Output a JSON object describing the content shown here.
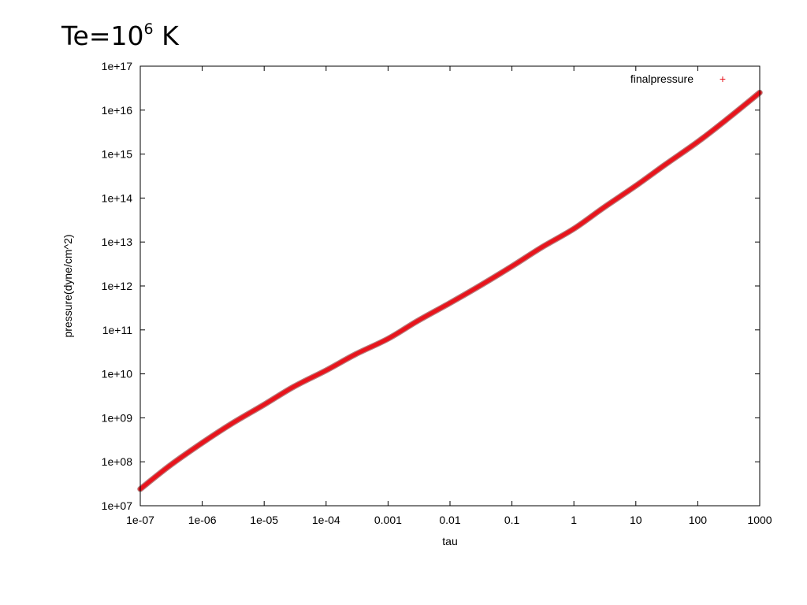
{
  "slide": {
    "title_base": "Te=10",
    "title_exponent": "6",
    "title_unit": " K"
  },
  "chart_data": {
    "type": "line",
    "xlabel": "tau",
    "ylabel": "pressure(dyne/cm^2)",
    "x_scale": "log",
    "y_scale": "log",
    "xlim": [
      1e-07,
      1000
    ],
    "ylim": [
      10000000.0,
      1e+17
    ],
    "x_ticks": [
      {
        "value": 1e-07,
        "label": "1e-07"
      },
      {
        "value": 1e-06,
        "label": "1e-06"
      },
      {
        "value": 1e-05,
        "label": "1e-05"
      },
      {
        "value": 0.0001,
        "label": "1e-04"
      },
      {
        "value": 0.001,
        "label": "0.001"
      },
      {
        "value": 0.01,
        "label": "0.01"
      },
      {
        "value": 0.1,
        "label": "0.1"
      },
      {
        "value": 1,
        "label": "1"
      },
      {
        "value": 10,
        "label": "10"
      },
      {
        "value": 100,
        "label": "100"
      },
      {
        "value": 1000,
        "label": "1000"
      }
    ],
    "y_ticks": [
      {
        "value": 10000000.0,
        "label": "1e+07"
      },
      {
        "value": 100000000.0,
        "label": "1e+08"
      },
      {
        "value": 1000000000.0,
        "label": "1e+09"
      },
      {
        "value": 10000000000.0,
        "label": "1e+10"
      },
      {
        "value": 100000000000.0,
        "label": "1e+11"
      },
      {
        "value": 1000000000000.0,
        "label": "1e+12"
      },
      {
        "value": 10000000000000.0,
        "label": "1e+13"
      },
      {
        "value": 100000000000000.0,
        "label": "1e+14"
      },
      {
        "value": 1000000000000000.0,
        "label": "1e+15"
      },
      {
        "value": 1e+16,
        "label": "1e+16"
      },
      {
        "value": 1e+17,
        "label": "1e+17"
      }
    ],
    "grid": false,
    "legend": {
      "position": "top-right",
      "marker": "+"
    },
    "series": [
      {
        "name": "finalpressure",
        "color": "#e8141c",
        "x": [
          1e-07,
          3e-07,
          1e-06,
          3e-06,
          1e-05,
          3e-05,
          0.0001,
          0.0003,
          0.001,
          0.003,
          0.01,
          0.03,
          0.1,
          0.3,
          1,
          3,
          10,
          30,
          100,
          300,
          1000
        ],
        "y": [
          24000000.0,
          82000000.0,
          270000000.0,
          740000000.0,
          2000000000.0,
          5100000000.0,
          12000000000.0,
          28000000000.0,
          63000000000.0,
          160000000000.0,
          410000000000.0,
          1000000000000.0,
          2800000000000.0,
          7500000000000.0,
          20000000000000.0,
          60000000000000.0,
          190000000000000.0,
          580000000000000.0,
          1900000000000000.0,
          6300000000000000.0,
          2.5e+16
        ]
      }
    ]
  }
}
